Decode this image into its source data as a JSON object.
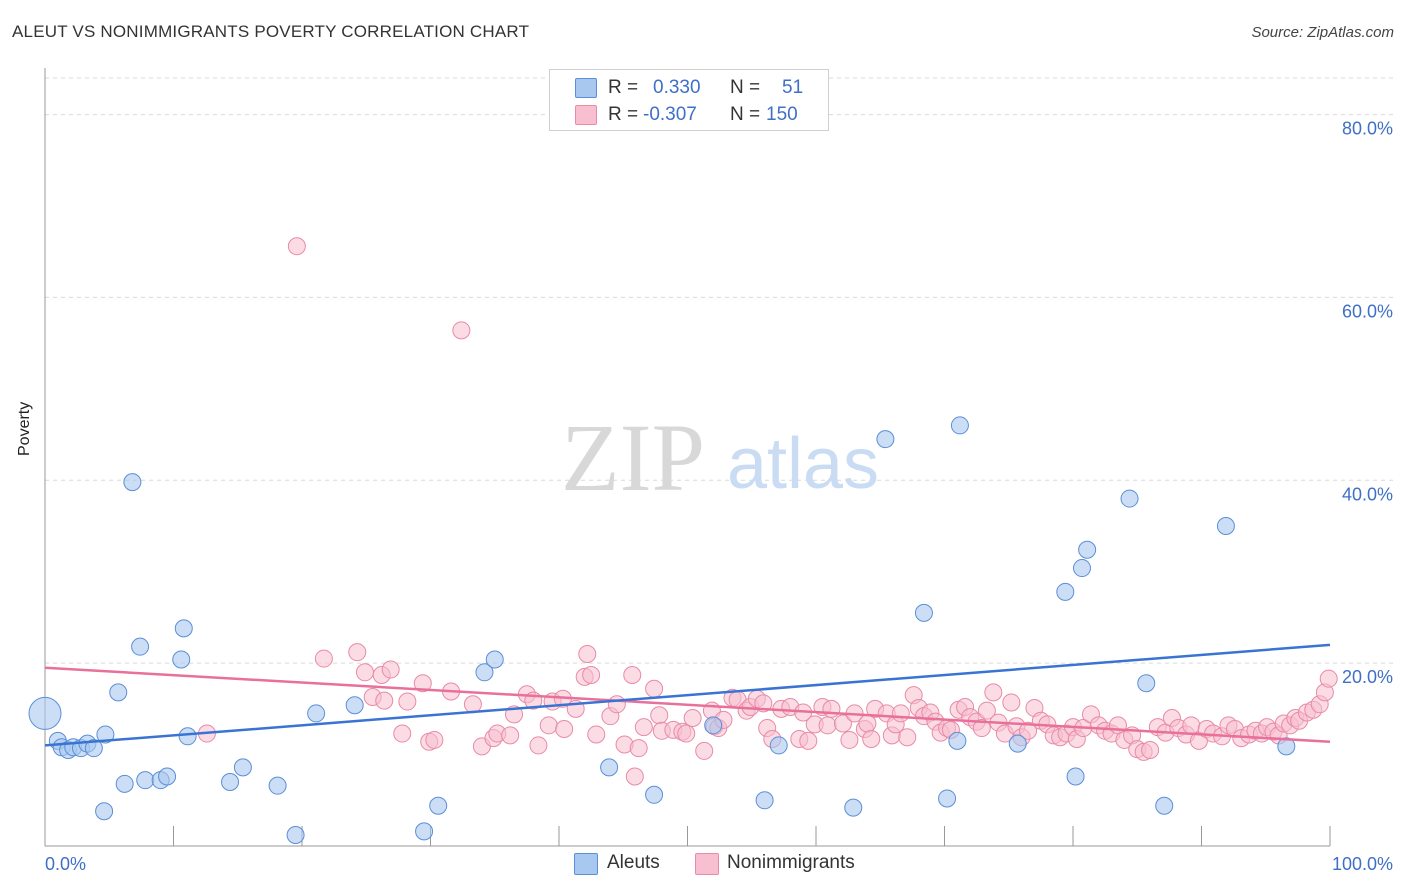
{
  "header": {
    "title": "ALEUT VS NONIMMIGRANTS POVERTY CORRELATION CHART",
    "source": "Source: ZipAtlas.com"
  },
  "watermark": {
    "zip": "ZIP",
    "atlas": "atlas"
  },
  "stats": [
    {
      "r_label": "R =",
      "r_value": "0.330",
      "n_label": "N =",
      "n_value": "51"
    },
    {
      "r_label": "R =",
      "r_value": "-0.307",
      "n_label": "N =",
      "n_value": "150"
    }
  ],
  "colors": {
    "aleuts_fill": "#a9c8f0",
    "aleuts_stroke": "#5b8fd6",
    "aleuts_line": "#3a74d2",
    "nonimm_fill": "#f7bfd0",
    "nonimm_stroke": "#e98aa8",
    "nonimm_line": "#e8709a",
    "axis_text": "#3f6fc6",
    "grid": "#d9d9d9"
  },
  "chart_data": {
    "type": "scatter",
    "title": "ALEUT VS NONIMMIGRANTS POVERTY CORRELATION CHART",
    "xlabel": "",
    "ylabel": "Poverty",
    "xlim": [
      0,
      100
    ],
    "ylim": [
      0,
      84
    ],
    "x_tick_labels": [
      "0.0%",
      "100.0%"
    ],
    "y_ticks": [
      20,
      40,
      60,
      80
    ],
    "y_tick_labels": [
      "20.0%",
      "40.0%",
      "60.0%",
      "80.0%"
    ],
    "grid": "horizontal dashed",
    "legend_position": "bottom-center",
    "series": [
      {
        "name": "Aleuts",
        "r": 0.33,
        "n": 51,
        "trend": {
          "x": [
            0,
            100
          ],
          "y": [
            11.0,
            22.0
          ]
        },
        "points": [
          [
            0.0,
            14.5
          ],
          [
            1.0,
            11.5
          ],
          [
            1.3,
            10.8
          ],
          [
            1.8,
            10.5
          ],
          [
            2.2,
            10.8
          ],
          [
            2.8,
            10.7
          ],
          [
            3.3,
            11.2
          ],
          [
            3.8,
            10.7
          ],
          [
            4.6,
            3.8
          ],
          [
            4.7,
            12.2
          ],
          [
            5.7,
            16.8
          ],
          [
            6.2,
            6.8
          ],
          [
            6.8,
            39.8
          ],
          [
            7.4,
            21.8
          ],
          [
            7.8,
            7.2
          ],
          [
            9.0,
            7.2
          ],
          [
            9.5,
            7.6
          ],
          [
            10.6,
            20.4
          ],
          [
            10.8,
            23.8
          ],
          [
            11.1,
            12.0
          ],
          [
            14.4,
            7.0
          ],
          [
            15.4,
            8.6
          ],
          [
            18.1,
            6.6
          ],
          [
            19.5,
            1.2
          ],
          [
            21.1,
            14.5
          ],
          [
            24.1,
            15.4
          ],
          [
            29.5,
            1.6
          ],
          [
            30.6,
            4.4
          ],
          [
            34.2,
            19.0
          ],
          [
            35.0,
            20.4
          ],
          [
            43.9,
            8.6
          ],
          [
            47.4,
            5.6
          ],
          [
            52.0,
            13.2
          ],
          [
            56.0,
            5.0
          ],
          [
            57.1,
            11.0
          ],
          [
            62.9,
            4.2
          ],
          [
            65.4,
            44.5
          ],
          [
            68.4,
            25.5
          ],
          [
            70.2,
            5.2
          ],
          [
            71.0,
            11.5
          ],
          [
            71.2,
            46.0
          ],
          [
            75.7,
            11.2
          ],
          [
            79.4,
            27.8
          ],
          [
            80.2,
            7.6
          ],
          [
            80.7,
            30.4
          ],
          [
            81.1,
            32.4
          ],
          [
            84.4,
            38.0
          ],
          [
            85.7,
            17.8
          ],
          [
            87.1,
            4.4
          ],
          [
            91.9,
            35.0
          ],
          [
            96.6,
            10.9
          ]
        ]
      },
      {
        "name": "Nonimmigrants",
        "r": -0.307,
        "n": 150,
        "trend": {
          "x": [
            0,
            100
          ],
          "y": [
            19.5,
            11.4
          ]
        },
        "points": [
          [
            12.6,
            12.3
          ],
          [
            19.6,
            65.6
          ],
          [
            21.7,
            20.5
          ],
          [
            24.3,
            21.2
          ],
          [
            24.9,
            19.0
          ],
          [
            25.5,
            16.3
          ],
          [
            26.2,
            18.7
          ],
          [
            26.4,
            15.9
          ],
          [
            26.9,
            19.3
          ],
          [
            27.8,
            12.3
          ],
          [
            28.2,
            15.8
          ],
          [
            29.4,
            17.8
          ],
          [
            29.9,
            11.4
          ],
          [
            30.3,
            11.6
          ],
          [
            31.6,
            16.9
          ],
          [
            32.4,
            56.4
          ],
          [
            33.3,
            15.5
          ],
          [
            34.0,
            10.9
          ],
          [
            34.9,
            11.8
          ],
          [
            35.2,
            12.3
          ],
          [
            36.2,
            12.1
          ],
          [
            36.5,
            14.4
          ],
          [
            37.5,
            16.6
          ],
          [
            38.0,
            15.9
          ],
          [
            38.4,
            11.0
          ],
          [
            39.2,
            13.2
          ],
          [
            39.5,
            15.8
          ],
          [
            40.3,
            16.1
          ],
          [
            40.4,
            12.8
          ],
          [
            41.3,
            15.0
          ],
          [
            42.0,
            18.5
          ],
          [
            42.2,
            21.0
          ],
          [
            42.5,
            18.7
          ],
          [
            42.9,
            12.2
          ],
          [
            44.0,
            14.2
          ],
          [
            44.5,
            15.5
          ],
          [
            45.1,
            11.1
          ],
          [
            45.7,
            18.7
          ],
          [
            45.9,
            7.6
          ],
          [
            46.2,
            10.7
          ],
          [
            46.6,
            13.0
          ],
          [
            47.4,
            17.2
          ],
          [
            47.8,
            14.3
          ],
          [
            48.0,
            12.6
          ],
          [
            48.9,
            12.7
          ],
          [
            49.6,
            12.5
          ],
          [
            49.9,
            12.3
          ],
          [
            50.4,
            14.0
          ],
          [
            51.3,
            10.4
          ],
          [
            51.9,
            14.8
          ],
          [
            52.1,
            13.1
          ],
          [
            52.4,
            12.9
          ],
          [
            52.8,
            13.8
          ],
          [
            53.5,
            16.2
          ],
          [
            53.9,
            16.0
          ],
          [
            54.6,
            14.8
          ],
          [
            54.9,
            15.2
          ],
          [
            55.4,
            16.1
          ],
          [
            55.9,
            15.6
          ],
          [
            56.2,
            12.9
          ],
          [
            56.6,
            11.7
          ],
          [
            57.3,
            15.0
          ],
          [
            58.0,
            15.2
          ],
          [
            58.7,
            11.7
          ],
          [
            59.0,
            14.6
          ],
          [
            59.4,
            11.5
          ],
          [
            59.9,
            13.3
          ],
          [
            60.5,
            15.2
          ],
          [
            60.9,
            13.2
          ],
          [
            61.2,
            15.0
          ],
          [
            62.1,
            13.4
          ],
          [
            62.6,
            11.6
          ],
          [
            63.0,
            14.5
          ],
          [
            63.8,
            12.8
          ],
          [
            64.0,
            13.4
          ],
          [
            64.3,
            11.7
          ],
          [
            64.6,
            15.0
          ],
          [
            65.5,
            14.5
          ],
          [
            65.9,
            12.1
          ],
          [
            66.2,
            13.3
          ],
          [
            66.6,
            14.5
          ],
          [
            67.1,
            11.9
          ],
          [
            67.6,
            16.5
          ],
          [
            68.0,
            15.1
          ],
          [
            68.4,
            14.2
          ],
          [
            68.9,
            14.6
          ],
          [
            69.3,
            13.6
          ],
          [
            69.7,
            12.4
          ],
          [
            70.2,
            12.9
          ],
          [
            70.5,
            12.7
          ],
          [
            71.1,
            14.9
          ],
          [
            71.6,
            15.2
          ],
          [
            72.0,
            14.1
          ],
          [
            72.5,
            13.6
          ],
          [
            72.9,
            12.9
          ],
          [
            73.3,
            14.8
          ],
          [
            73.8,
            16.8
          ],
          [
            74.2,
            13.5
          ],
          [
            74.7,
            12.3
          ],
          [
            75.2,
            15.7
          ],
          [
            75.6,
            13.1
          ],
          [
            76.0,
            11.9
          ],
          [
            76.5,
            12.6
          ],
          [
            77.0,
            15.1
          ],
          [
            77.5,
            13.7
          ],
          [
            78.0,
            13.3
          ],
          [
            78.5,
            12.1
          ],
          [
            79.0,
            11.9
          ],
          [
            79.5,
            12.3
          ],
          [
            80.0,
            13.0
          ],
          [
            80.3,
            11.7
          ],
          [
            80.8,
            12.9
          ],
          [
            81.4,
            14.4
          ],
          [
            82.0,
            13.2
          ],
          [
            82.5,
            12.6
          ],
          [
            83.0,
            12.3
          ],
          [
            83.5,
            13.2
          ],
          [
            84.0,
            11.6
          ],
          [
            84.6,
            12.1
          ],
          [
            85.0,
            10.6
          ],
          [
            85.5,
            10.3
          ],
          [
            86.0,
            10.5
          ],
          [
            86.6,
            13.0
          ],
          [
            87.2,
            12.4
          ],
          [
            87.7,
            14.0
          ],
          [
            88.2,
            12.9
          ],
          [
            88.8,
            12.2
          ],
          [
            89.2,
            13.2
          ],
          [
            89.8,
            11.5
          ],
          [
            90.4,
            12.8
          ],
          [
            90.9,
            12.3
          ],
          [
            91.6,
            12.0
          ],
          [
            92.1,
            13.2
          ],
          [
            92.6,
            12.8
          ],
          [
            93.1,
            11.8
          ],
          [
            93.7,
            12.2
          ],
          [
            94.2,
            12.6
          ],
          [
            94.7,
            12.3
          ],
          [
            95.1,
            13.0
          ],
          [
            95.6,
            12.5
          ],
          [
            96.0,
            12.1
          ],
          [
            96.4,
            13.4
          ],
          [
            96.9,
            13.2
          ],
          [
            97.3,
            14.0
          ],
          [
            97.6,
            13.7
          ],
          [
            98.2,
            14.6
          ],
          [
            98.7,
            14.9
          ],
          [
            99.2,
            15.5
          ],
          [
            99.6,
            16.8
          ],
          [
            99.9,
            18.3
          ]
        ]
      }
    ]
  },
  "legend": {
    "items": [
      "Aleuts",
      "Nonimmigrants"
    ]
  }
}
